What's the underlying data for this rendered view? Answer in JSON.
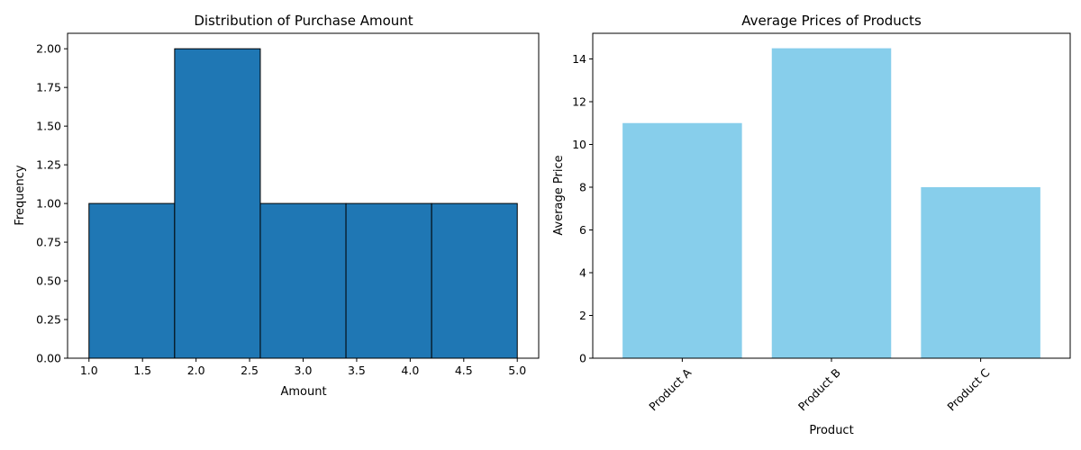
{
  "chart_data": [
    {
      "type": "bar",
      "subtype": "histogram",
      "title": "Distribution of Purchase Amount",
      "xlabel": "Amount",
      "ylabel": "Frequency",
      "bins": [
        {
          "start": 1.0,
          "end": 1.8,
          "count": 1
        },
        {
          "start": 1.8,
          "end": 2.6,
          "count": 2
        },
        {
          "start": 2.6,
          "end": 3.4,
          "count": 1
        },
        {
          "start": 3.4,
          "end": 4.2,
          "count": 1
        },
        {
          "start": 4.2,
          "end": 5.0,
          "count": 1
        }
      ],
      "xlim": [
        0.8,
        5.2
      ],
      "ylim": [
        0,
        2.1
      ],
      "xticks": [
        1.0,
        1.5,
        2.0,
        2.5,
        3.0,
        3.5,
        4.0,
        4.5,
        5.0
      ],
      "xtick_labels": [
        "1.0",
        "1.5",
        "2.0",
        "2.5",
        "3.0",
        "3.5",
        "4.0",
        "4.5",
        "5.0"
      ],
      "yticks": [
        0,
        0.25,
        0.5,
        0.75,
        1.0,
        1.25,
        1.5,
        1.75,
        2.0
      ],
      "ytick_labels": [
        "0.00",
        "0.25",
        "0.50",
        "0.75",
        "1.00",
        "1.25",
        "1.50",
        "1.75",
        "2.00"
      ],
      "grid": false,
      "bar_color": "#1f77b4",
      "edge_color": "#000000"
    },
    {
      "type": "bar",
      "title": "Average Prices of Products",
      "xlabel": "Product",
      "ylabel": "Average Price",
      "categories": [
        "Product A",
        "Product B",
        "Product C"
      ],
      "values": [
        11,
        14.5,
        8
      ],
      "ylim": [
        0,
        15.2
      ],
      "yticks": [
        0,
        2,
        4,
        6,
        8,
        10,
        12,
        14
      ],
      "ytick_labels": [
        "0",
        "2",
        "4",
        "6",
        "8",
        "10",
        "12",
        "14"
      ],
      "xtick_rotation": 45,
      "grid": false,
      "bar_color": "#87ceeb"
    }
  ]
}
